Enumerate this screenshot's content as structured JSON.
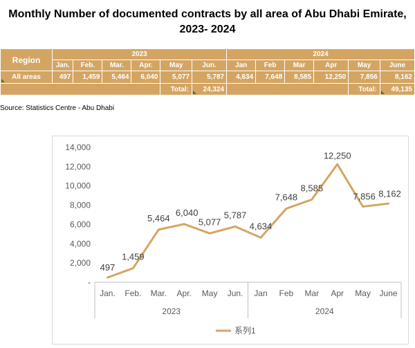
{
  "title": {
    "line1": "Monthly Number of documented contracts by all area of Abu Dhabi Emirate,",
    "line2": "2023- 2024"
  },
  "table": {
    "region_header": "Region",
    "years": [
      "2023",
      "2024"
    ],
    "months_2023": [
      "Jan.",
      "Feb.",
      "Mar.",
      "Apr.",
      "May",
      "Jun."
    ],
    "months_2024": [
      "Jan",
      "Feb",
      "Mar",
      "Apr",
      "May",
      "June"
    ],
    "row_label": "All areas",
    "values_2023": [
      "497",
      "1,459",
      "5,464",
      "6,040",
      "5,077",
      "5,787"
    ],
    "values_2024": [
      "4,634",
      "7,648",
      "8,585",
      "12,250",
      "7,856",
      "8,162"
    ],
    "total_label": "Total:",
    "total_2023": "24,324",
    "total_2024": "49,135"
  },
  "source": "Source: Statistics Centre - Abu Dhabi",
  "chart_data": {
    "type": "line",
    "categories": [
      "Jan.",
      "Feb.",
      "Mar.",
      "Apr.",
      "May",
      "Jun.",
      "Jan",
      "Feb",
      "Mar",
      "Apr",
      "May",
      "June"
    ],
    "groups": [
      {
        "label": "2023",
        "count": 6
      },
      {
        "label": "2024",
        "count": 6
      }
    ],
    "series": [
      {
        "name": "系列1",
        "values": [
          497,
          1459,
          5464,
          6040,
          5077,
          5787,
          4634,
          7648,
          8585,
          12250,
          7856,
          8162
        ]
      }
    ],
    "data_labels": [
      "497",
      "1,459",
      "5,464",
      "6,040",
      "5,077",
      "5,787",
      "4,634",
      "7,648",
      "8,585",
      "12,250",
      "7,856",
      "8,162"
    ],
    "y_ticks": [
      "-",
      "2,000",
      "4,000",
      "6,000",
      "8,000",
      "10,000",
      "12,000",
      "14,000"
    ],
    "ylim": [
      0,
      14000
    ],
    "grid": false,
    "legend": "bottom",
    "color": "#d4a562"
  }
}
